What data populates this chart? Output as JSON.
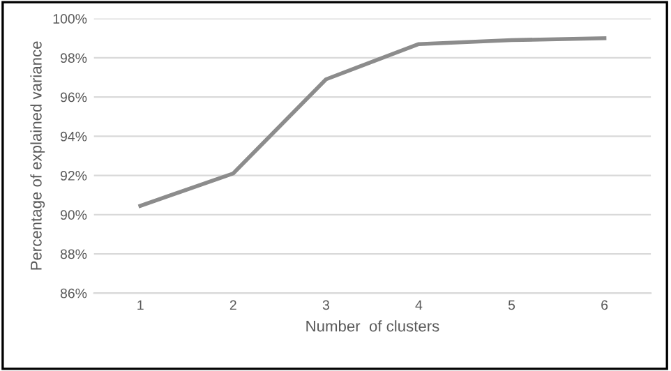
{
  "chart_data": {
    "type": "line",
    "xlabel": "Number  of clusters",
    "ylabel": "Percentage of explained variance",
    "categories": [
      "1",
      "2",
      "3",
      "4",
      "5",
      "6"
    ],
    "series": [
      {
        "color": "#8c8c8c",
        "values": [
          90.45,
          92.1,
          96.9,
          98.7,
          98.9,
          99.0
        ]
      }
    ],
    "ylim": [
      86,
      100
    ],
    "yticks": [
      {
        "value": 86,
        "label": "86%"
      },
      {
        "value": 88,
        "label": "88%"
      },
      {
        "value": 90,
        "label": "90%"
      },
      {
        "value": 92,
        "label": "92%"
      },
      {
        "value": 94,
        "label": "94%"
      },
      {
        "value": 96,
        "label": "96%"
      },
      {
        "value": 98,
        "label": "98%"
      },
      {
        "value": 100,
        "label": "100%"
      }
    ],
    "grid": "y",
    "marker": "none",
    "line_style": "solid",
    "legend": false
  }
}
